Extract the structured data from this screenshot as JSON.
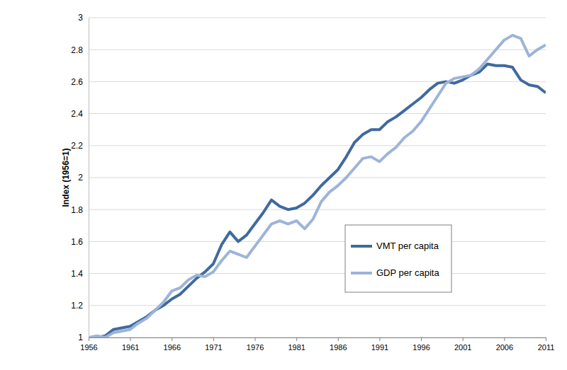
{
  "chart_data": {
    "type": "line",
    "y_label": "Index (1956=1)",
    "x": [
      1956,
      1957,
      1958,
      1959,
      1960,
      1961,
      1962,
      1963,
      1964,
      1965,
      1966,
      1967,
      1968,
      1969,
      1970,
      1971,
      1972,
      1973,
      1974,
      1975,
      1976,
      1977,
      1978,
      1979,
      1980,
      1981,
      1982,
      1983,
      1984,
      1985,
      1986,
      1987,
      1988,
      1989,
      1990,
      1991,
      1992,
      1993,
      1994,
      1995,
      1996,
      1997,
      1998,
      1999,
      2000,
      2001,
      2002,
      2003,
      2004,
      2005,
      2006,
      2007,
      2008,
      2009,
      2010,
      2011
    ],
    "series": [
      {
        "name": "VMT per capita",
        "color": "#3f6a9f",
        "values": [
          1.0,
          1.0,
          1.01,
          1.05,
          1.06,
          1.07,
          1.1,
          1.13,
          1.17,
          1.2,
          1.24,
          1.27,
          1.32,
          1.37,
          1.41,
          1.46,
          1.58,
          1.66,
          1.6,
          1.64,
          1.71,
          1.78,
          1.86,
          1.82,
          1.8,
          1.81,
          1.84,
          1.89,
          1.95,
          2.0,
          2.05,
          2.13,
          2.22,
          2.27,
          2.3,
          2.3,
          2.35,
          2.38,
          2.42,
          2.46,
          2.5,
          2.55,
          2.59,
          2.6,
          2.59,
          2.61,
          2.64,
          2.66,
          2.71,
          2.7,
          2.7,
          2.69,
          2.61,
          2.58,
          2.57,
          2.53
        ]
      },
      {
        "name": "GDP per capita",
        "color": "#9db4d8",
        "values": [
          1.0,
          1.01,
          1.0,
          1.03,
          1.04,
          1.05,
          1.09,
          1.12,
          1.17,
          1.22,
          1.29,
          1.31,
          1.36,
          1.39,
          1.38,
          1.41,
          1.48,
          1.54,
          1.52,
          1.5,
          1.57,
          1.64,
          1.71,
          1.73,
          1.71,
          1.73,
          1.68,
          1.74,
          1.85,
          1.91,
          1.95,
          2.0,
          2.06,
          2.12,
          2.13,
          2.1,
          2.15,
          2.19,
          2.25,
          2.29,
          2.35,
          2.43,
          2.51,
          2.59,
          2.62,
          2.63,
          2.64,
          2.68,
          2.74,
          2.8,
          2.86,
          2.89,
          2.87,
          2.76,
          2.8,
          2.83
        ]
      }
    ],
    "xlim": [
      1956,
      2011
    ],
    "xticks": [
      1956,
      1961,
      1966,
      1971,
      1976,
      1981,
      1986,
      1991,
      1996,
      2001,
      2006,
      2011
    ],
    "ylim": [
      1,
      3
    ],
    "yticks": [
      1,
      1.2,
      1.4,
      1.6,
      1.8,
      2,
      2.2,
      2.4,
      2.6,
      2.8,
      3
    ],
    "grid": true,
    "legend": "right"
  }
}
